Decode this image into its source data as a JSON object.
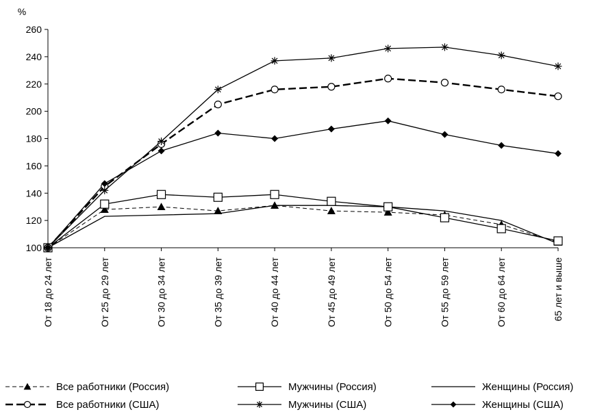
{
  "chart_data": {
    "type": "line",
    "ylabel": "%",
    "ylim": [
      100,
      260
    ],
    "yticks": [
      100,
      120,
      140,
      160,
      180,
      200,
      220,
      240,
      260
    ],
    "grid": false,
    "legend_position": "bottom",
    "categories": [
      "От 18 до 24 лет",
      "От 25 до 29 лет",
      "От 30 до 34 лет",
      "От 35 до 39 лет",
      "От 40 до 44 лет",
      "От 45 до 49 лет",
      "От 50 до 54 лет",
      "От 55 до 59 лет",
      "От 60 до 64 лет",
      "65 лет и выше"
    ],
    "series": [
      {
        "name": "Все работники (Россия)",
        "values": [
          100,
          128,
          130,
          127,
          131,
          127,
          126,
          124,
          117,
          104
        ],
        "marker": "triangle",
        "line": "dashed-thin",
        "color": "#000000"
      },
      {
        "name": "Мужчины (Россия)",
        "values": [
          100,
          132,
          139,
          137,
          139,
          134,
          130,
          122,
          114,
          105
        ],
        "marker": "square",
        "line": "solid",
        "color": "#000000"
      },
      {
        "name": "Женщины (Россия)",
        "values": [
          100,
          123,
          124,
          125,
          131,
          131,
          130,
          127,
          120,
          103
        ],
        "marker": "none",
        "line": "solid",
        "color": "#000000"
      },
      {
        "name": "Все работники (США)",
        "values": [
          100,
          145,
          176,
          205,
          216,
          218,
          224,
          221,
          216,
          211
        ],
        "marker": "circle",
        "line": "dashed-thick",
        "color": "#000000"
      },
      {
        "name": "Мужчины (США)",
        "values": [
          100,
          142,
          178,
          216,
          237,
          239,
          246,
          247,
          241,
          233
        ],
        "marker": "star",
        "line": "solid",
        "color": "#000000"
      },
      {
        "name": "Женщины (США)",
        "values": [
          100,
          147,
          171,
          184,
          180,
          187,
          193,
          183,
          175,
          169
        ],
        "marker": "diamond",
        "line": "solid",
        "color": "#000000"
      }
    ]
  }
}
